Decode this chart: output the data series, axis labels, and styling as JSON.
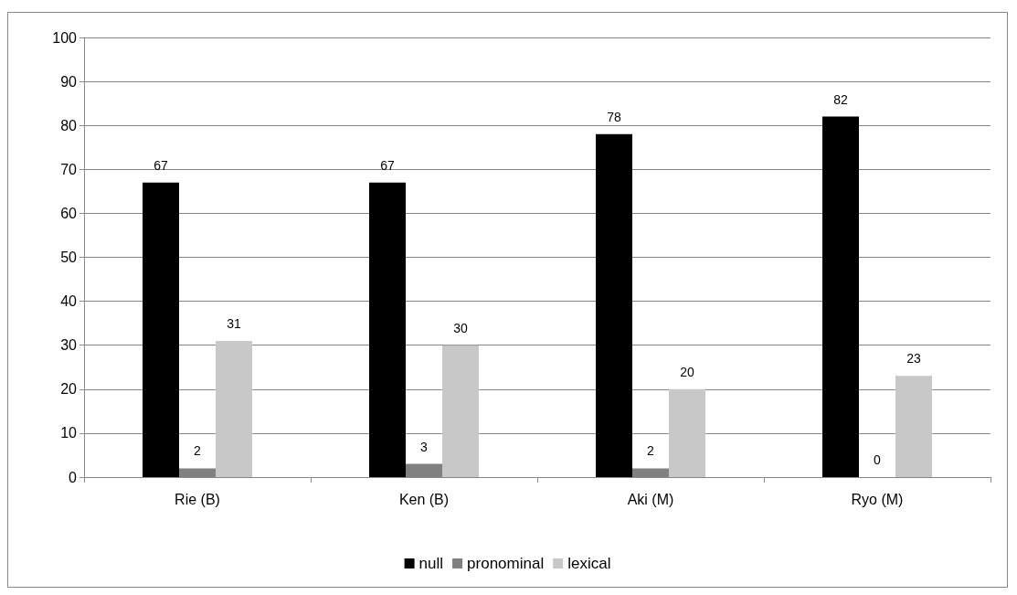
{
  "chart_data": {
    "type": "bar",
    "categories": [
      "Rie (B)",
      "Ken (B)",
      "Aki (M)",
      "Ryo (M)"
    ],
    "series": [
      {
        "name": "null",
        "color": "#000000",
        "values": [
          67,
          67,
          78,
          82
        ]
      },
      {
        "name": "pronominal",
        "color": "#808080",
        "values": [
          2,
          3,
          2,
          0
        ]
      },
      {
        "name": "lexical",
        "color": "#c8c8c8",
        "values": [
          31,
          30,
          20,
          23
        ]
      }
    ],
    "ylim": [
      0,
      100
    ],
    "yticks": [
      0,
      10,
      20,
      30,
      40,
      50,
      60,
      70,
      80,
      90,
      100
    ],
    "grid": "y",
    "legend": "bottom",
    "data_labels": true
  }
}
